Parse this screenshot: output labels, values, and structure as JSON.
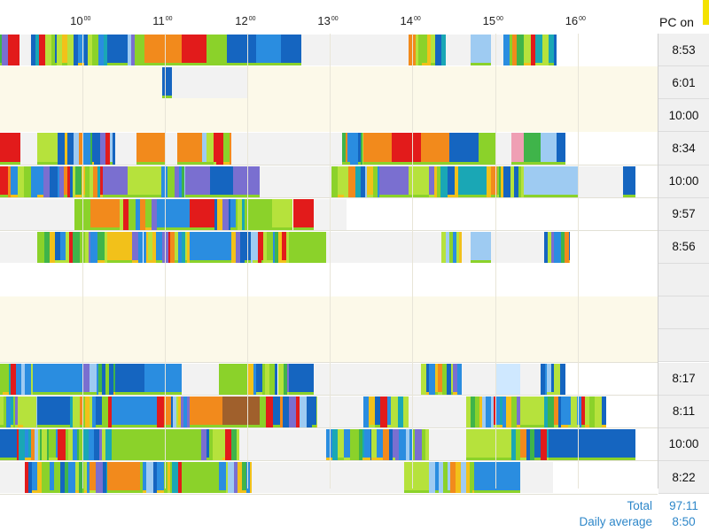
{
  "header": {
    "hours": [
      {
        "h": "10",
        "m": "00"
      },
      {
        "h": "11",
        "m": "00"
      },
      {
        "h": "12",
        "m": "00"
      },
      {
        "h": "13",
        "m": "00"
      },
      {
        "h": "14",
        "m": "00"
      },
      {
        "h": "15",
        "m": "00"
      },
      {
        "h": "16",
        "m": "00"
      }
    ],
    "pc_on_label": "PC on"
  },
  "timeline": {
    "start_hour": 9.0,
    "end_hour": 16.97,
    "palette": [
      "#1565c0",
      "#2a8de0",
      "#8bd22a",
      "#b6e23c",
      "#f28a1c",
      "#e21b1b",
      "#f2c11a",
      "#1aa7b5",
      "#7a6fd0",
      "#3fb44a",
      "#9ecbf2",
      "#ef9fb4",
      "#a0602c",
      "#f2f2f2",
      "#cfe8ff"
    ]
  },
  "rows": [
    {
      "pc_on": "8:53",
      "empty": false,
      "segments": [
        [
          9.0,
          9.24,
          "mix",
          3
        ],
        [
          9.24,
          9.38,
          13
        ],
        [
          9.38,
          10.3,
          "mix",
          1
        ],
        [
          10.3,
          10.55,
          0
        ],
        [
          10.55,
          10.75,
          "mix",
          2
        ],
        [
          10.75,
          11.2,
          4
        ],
        [
          11.2,
          11.5,
          5
        ],
        [
          11.5,
          11.75,
          2
        ],
        [
          11.75,
          12.1,
          0
        ],
        [
          12.1,
          12.4,
          1
        ],
        [
          12.4,
          12.65,
          0
        ],
        [
          12.65,
          13.95,
          13
        ],
        [
          13.95,
          14.4,
          "mix",
          4
        ],
        [
          14.4,
          14.7,
          13
        ],
        [
          14.7,
          14.95,
          10
        ],
        [
          14.95,
          15.1,
          13
        ],
        [
          15.1,
          15.75,
          "mix",
          5
        ]
      ]
    },
    {
      "pc_on": "6:01",
      "empty": true,
      "segments": [
        [
          10.97,
          11.08,
          0
        ],
        [
          11.08,
          12.0,
          13
        ]
      ]
    },
    {
      "pc_on": "10:00",
      "empty": true,
      "segments": []
    },
    {
      "pc_on": "8:34",
      "empty": false,
      "segments": [
        [
          9.0,
          9.25,
          5
        ],
        [
          9.25,
          9.45,
          13
        ],
        [
          9.45,
          9.7,
          3
        ],
        [
          9.7,
          10.4,
          "mix",
          6
        ],
        [
          10.4,
          10.65,
          13
        ],
        [
          10.65,
          11.0,
          4
        ],
        [
          11.0,
          11.15,
          13
        ],
        [
          11.15,
          11.45,
          4
        ],
        [
          11.45,
          11.8,
          "mix",
          7
        ],
        [
          11.8,
          13.15,
          13
        ],
        [
          13.15,
          13.4,
          "mix",
          8
        ],
        [
          13.4,
          13.75,
          4
        ],
        [
          13.75,
          14.1,
          5
        ],
        [
          14.1,
          14.45,
          4
        ],
        [
          14.45,
          14.8,
          0
        ],
        [
          14.8,
          15.0,
          2
        ],
        [
          15.0,
          15.2,
          13
        ],
        [
          15.2,
          15.35,
          11
        ],
        [
          15.35,
          15.55,
          9
        ],
        [
          15.55,
          15.75,
          10
        ],
        [
          15.75,
          15.85,
          0
        ]
      ]
    },
    {
      "pc_on": "10:00",
      "empty": false,
      "segments": [
        [
          9.0,
          9.1,
          5
        ],
        [
          9.1,
          10.25,
          "mix",
          9
        ],
        [
          10.25,
          10.55,
          8
        ],
        [
          10.55,
          10.95,
          3
        ],
        [
          10.95,
          11.25,
          "mix",
          10
        ],
        [
          11.25,
          11.55,
          8
        ],
        [
          11.55,
          11.82,
          0
        ],
        [
          11.82,
          12.15,
          8
        ],
        [
          12.15,
          13.02,
          13
        ],
        [
          13.02,
          13.6,
          "mix",
          11
        ],
        [
          13.6,
          13.95,
          8
        ],
        [
          13.95,
          14.2,
          3
        ],
        [
          14.2,
          14.55,
          "mix",
          12
        ],
        [
          14.55,
          14.9,
          7
        ],
        [
          14.9,
          15.35,
          "mix",
          13
        ],
        [
          15.35,
          15.8,
          10
        ],
        [
          15.8,
          16.0,
          10
        ],
        [
          16.0,
          16.55,
          13
        ],
        [
          16.55,
          16.7,
          0
        ]
      ]
    },
    {
      "pc_on": "9:57",
      "empty": false,
      "segments": [
        [
          9.0,
          9.9,
          13
        ],
        [
          9.9,
          10.1,
          2
        ],
        [
          10.1,
          10.45,
          4
        ],
        [
          10.45,
          10.9,
          "mix",
          14
        ],
        [
          10.9,
          11.3,
          1
        ],
        [
          11.3,
          11.6,
          5
        ],
        [
          11.6,
          12.0,
          "mix",
          15
        ],
        [
          12.0,
          12.3,
          2
        ],
        [
          12.3,
          12.55,
          3
        ],
        [
          12.55,
          12.8,
          5
        ],
        [
          12.8,
          13.2,
          13
        ]
      ]
    },
    {
      "pc_on": "8:56",
      "empty": false,
      "segments": [
        [
          9.0,
          9.45,
          13
        ],
        [
          9.45,
          10.3,
          "mix",
          16
        ],
        [
          10.3,
          10.6,
          6
        ],
        [
          10.6,
          11.3,
          "mix",
          17
        ],
        [
          11.3,
          11.8,
          1
        ],
        [
          11.8,
          12.5,
          "mix",
          18
        ],
        [
          12.5,
          12.95,
          2
        ],
        [
          12.95,
          14.35,
          13
        ],
        [
          14.35,
          14.6,
          "mix",
          19
        ],
        [
          14.6,
          14.7,
          13
        ],
        [
          14.7,
          14.95,
          10
        ],
        [
          14.95,
          15.6,
          13
        ],
        [
          15.6,
          15.9,
          "mix",
          20
        ]
      ]
    },
    {
      "pc_on": "",
      "empty": false,
      "segments": []
    },
    {
      "pc_on": "",
      "empty": true,
      "segments": []
    },
    {
      "pc_on": "",
      "empty": true,
      "segments": []
    },
    {
      "pc_on": "8:17",
      "empty": false,
      "segments": [
        [
          9.0,
          9.4,
          "mix",
          21
        ],
        [
          9.4,
          10.0,
          1
        ],
        [
          10.0,
          10.4,
          "mix",
          22
        ],
        [
          10.4,
          10.75,
          0
        ],
        [
          10.75,
          11.2,
          1
        ],
        [
          11.2,
          11.65,
          13
        ],
        [
          11.65,
          12.0,
          2
        ],
        [
          12.0,
          12.5,
          "mix",
          23
        ],
        [
          12.5,
          12.8,
          0
        ],
        [
          12.8,
          13.0,
          13
        ],
        [
          13.0,
          14.1,
          13
        ],
        [
          14.1,
          14.6,
          "mix",
          24
        ],
        [
          14.6,
          14.7,
          13
        ],
        [
          14.7,
          15.0,
          13
        ],
        [
          15.0,
          15.3,
          14
        ],
        [
          15.3,
          15.55,
          13
        ],
        [
          15.55,
          15.85,
          "mix",
          25
        ]
      ]
    },
    {
      "pc_on": "8:11",
      "empty": false,
      "segments": [
        [
          9.0,
          9.45,
          "mix",
          26
        ],
        [
          9.45,
          9.85,
          0
        ],
        [
          9.85,
          10.35,
          "mix",
          27
        ],
        [
          10.35,
          10.9,
          1
        ],
        [
          10.9,
          11.3,
          "mix",
          28
        ],
        [
          11.3,
          11.7,
          4
        ],
        [
          11.7,
          12.15,
          12
        ],
        [
          12.15,
          12.85,
          "mix",
          29
        ],
        [
          12.85,
          13.4,
          13
        ],
        [
          13.4,
          13.95,
          "mix",
          30
        ],
        [
          13.95,
          14.65,
          13
        ],
        [
          14.65,
          15.3,
          "mix",
          31
        ],
        [
          15.3,
          15.6,
          3
        ],
        [
          15.6,
          16.35,
          "mix",
          32
        ]
      ]
    },
    {
      "pc_on": "10:00",
      "empty": false,
      "segments": [
        [
          9.0,
          9.2,
          0
        ],
        [
          9.2,
          10.35,
          "mix",
          33
        ],
        [
          10.35,
          11.35,
          2
        ],
        [
          11.35,
          11.9,
          "mix",
          34
        ],
        [
          11.9,
          12.05,
          13
        ],
        [
          12.05,
          12.95,
          13
        ],
        [
          12.95,
          13.5,
          "mix",
          35
        ],
        [
          13.5,
          14.2,
          "mix",
          36
        ],
        [
          14.2,
          14.65,
          13
        ],
        [
          14.65,
          15.2,
          3
        ],
        [
          15.2,
          15.65,
          "mix",
          37
        ],
        [
          15.65,
          16.7,
          0
        ]
      ]
    },
    {
      "pc_on": "8:22",
      "empty": false,
      "segments": [
        [
          9.0,
          9.3,
          13
        ],
        [
          9.3,
          10.3,
          "mix",
          38
        ],
        [
          10.3,
          10.7,
          4
        ],
        [
          10.7,
          11.2,
          "mix",
          39
        ],
        [
          11.2,
          11.65,
          2
        ],
        [
          11.65,
          12.05,
          "mix",
          40
        ],
        [
          12.05,
          13.0,
          13
        ],
        [
          13.0,
          13.9,
          13
        ],
        [
          13.9,
          14.2,
          3
        ],
        [
          14.2,
          14.75,
          "mix",
          41
        ],
        [
          14.75,
          15.3,
          1
        ],
        [
          15.3,
          15.7,
          13
        ]
      ]
    }
  ],
  "footer": {
    "total_label": "Total",
    "total_value": "97:11",
    "avg_label": "Daily average",
    "avg_value": "8:50"
  }
}
